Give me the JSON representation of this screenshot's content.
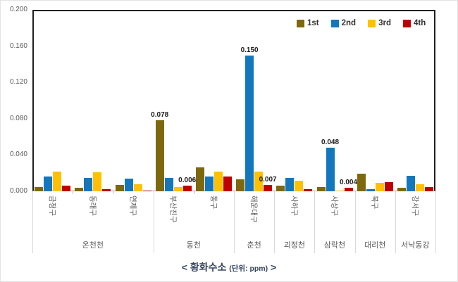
{
  "footer_title": {
    "main": "< 황화수소 ",
    "unit": "(단위: ppm)",
    "suffix": " >"
  },
  "axis": {
    "y_label_color": "#595959",
    "axis_border_color": "#1f1f1f"
  },
  "chart_data": {
    "type": "bar",
    "title": "< 황화수소 (단위: ppm) >",
    "xlabel": "",
    "ylabel": "",
    "ylim": [
      0,
      0.2
    ],
    "ytick_step": 0.04,
    "yticks": [
      "0.000",
      "0.040",
      "0.080",
      "0.120",
      "0.160",
      "0.200"
    ],
    "grid": false,
    "legend_position": "top-right-inside",
    "categories": [
      "금정구",
      "동래구",
      "연제구",
      "부산진구",
      "동구",
      "해운대구",
      "사하구",
      "사상구",
      "북구",
      "강서구"
    ],
    "group_spans": [
      {
        "label": "온천천",
        "count": 3
      },
      {
        "label": "동천",
        "count": 2
      },
      {
        "label": "춘천",
        "count": 1
      },
      {
        "label": "괴정천",
        "count": 1
      },
      {
        "label": "삼락천",
        "count": 1
      },
      {
        "label": "대리천",
        "count": 1
      },
      {
        "label": "서낙동강",
        "count": 1
      }
    ],
    "series": [
      {
        "name": "1st",
        "color": "#7d680d",
        "values": [
          0.005,
          0.004,
          0.007,
          0.078,
          0.026,
          0.013,
          0.006,
          0.005,
          0.019,
          0.004
        ],
        "data_labels": {
          "3": "0.078"
        }
      },
      {
        "name": "2nd",
        "color": "#1377bd",
        "values": [
          0.016,
          0.015,
          0.014,
          0.015,
          0.016,
          0.15,
          0.015,
          0.048,
          0.002,
          0.017
        ],
        "data_labels": {
          "5": "0.150",
          "7": "0.048"
        }
      },
      {
        "name": "3rd",
        "color": "#ffc000",
        "values": [
          0.022,
          0.021,
          0.008,
          0.005,
          0.022,
          0.022,
          0.012,
          0.001,
          0.009,
          0.008
        ],
        "data_labels": {}
      },
      {
        "name": "4th",
        "color": "#c00000",
        "values": [
          0.006,
          0.002,
          0.001,
          0.006,
          0.016,
          0.007,
          0.002,
          0.004,
          0.01,
          0.005
        ],
        "data_labels": {
          "3": "0.006",
          "5": "0.007",
          "7": "0.004"
        }
      }
    ]
  }
}
